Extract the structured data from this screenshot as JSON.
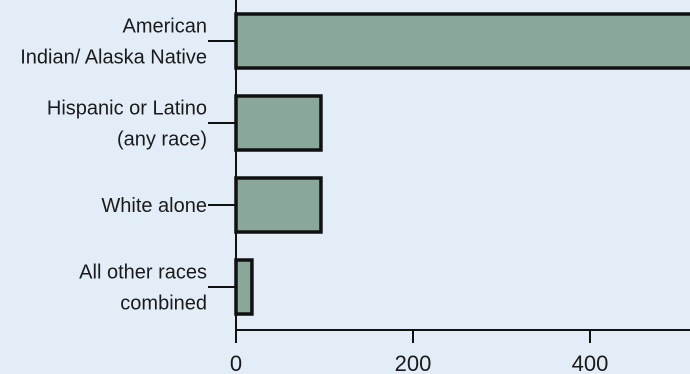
{
  "chart_data": {
    "type": "bar",
    "orientation": "horizontal",
    "categories": [
      [
        "American",
        "Indian/ Alaska Native"
      ],
      [
        "Hispanic or Latino",
        "(any race)"
      ],
      [
        "White alone"
      ],
      [
        "All other races",
        "combined"
      ]
    ],
    "values": [
      560,
      96,
      96,
      18
    ],
    "xlim": [
      0,
      520
    ],
    "xticks": [
      0,
      200,
      400
    ],
    "grid": false,
    "colors": {
      "background": "#e3edf8",
      "bar_fill": "#8aa89a",
      "bar_stroke": "#111111",
      "axis": "#111111",
      "text": "#1a1a1a"
    }
  }
}
